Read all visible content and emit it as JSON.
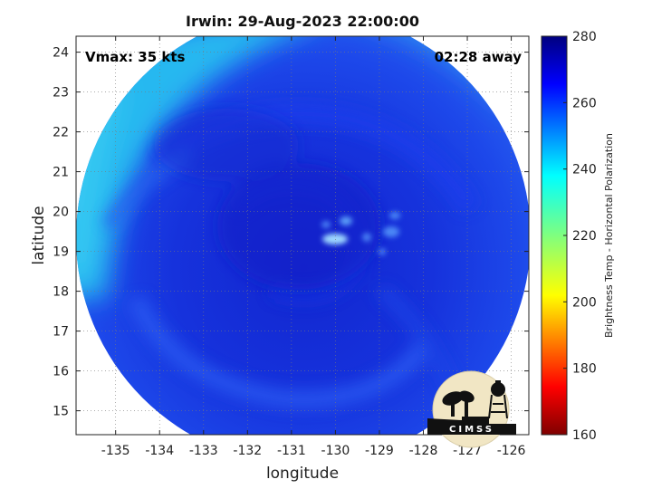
{
  "title": "Irwin: 29-Aug-2023 22:00:00",
  "vmax_label": "Vmax: 35 kts",
  "time_away": "02:28 away",
  "xlabel": "longitude",
  "ylabel": "latitude",
  "x_ticks": [
    "-135",
    "-134",
    "-133",
    "-132",
    "-131",
    "-130",
    "-129",
    "-128",
    "-127",
    "-126"
  ],
  "y_ticks": [
    "24",
    "23",
    "22",
    "21",
    "20",
    "19",
    "18",
    "17",
    "16",
    "15"
  ],
  "colorbar": {
    "title": "Brightness Temp - Horizontal Polarization",
    "ticks": [
      "280",
      "260",
      "240",
      "220",
      "200",
      "180",
      "160"
    ],
    "range": [
      160,
      280
    ]
  },
  "logo_text": "CIMSS",
  "colors": {
    "storm_core": "#1428d8",
    "storm_mid": "#1f4ef0",
    "outer_cyan": "#26b8f0",
    "eye_highlight": "#9fd8ff"
  }
}
